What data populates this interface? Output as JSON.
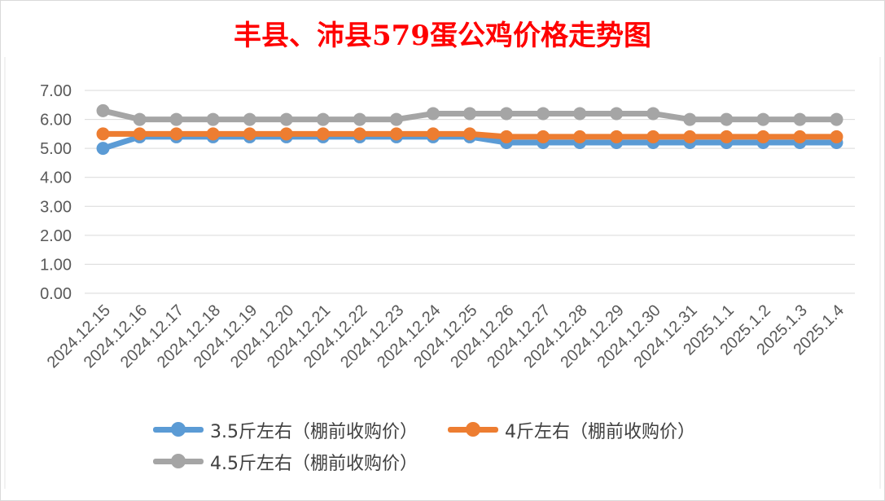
{
  "chart_data": {
    "type": "line",
    "title": "丰县、沛县579蛋公鸡价格走势图",
    "categories": [
      "2024.12.15",
      "2024.12.16",
      "2024.12.17",
      "2024.12.18",
      "2024.12.19",
      "2024.12.20",
      "2024.12.21",
      "2024.12.22",
      "2024.12.23",
      "2024.12.24",
      "2024.12.25",
      "2024.12.26",
      "2024.12.27",
      "2024.12.28",
      "2024.12.29",
      "2024.12.30",
      "2024.12.31",
      "2025.1.1",
      "2025.1.2",
      "2025.1.3",
      "2025.1.4"
    ],
    "y_ticks": [
      "0.00",
      "1.00",
      "2.00",
      "3.00",
      "4.00",
      "5.00",
      "6.00",
      "7.00"
    ],
    "ylim": [
      0,
      7
    ],
    "grid": true,
    "legend_position": "bottom",
    "series": [
      {
        "name": "3.5斤左右（棚前收购价）",
        "color": "#5b9bd5",
        "values": [
          5.0,
          5.4,
          5.4,
          5.4,
          5.4,
          5.4,
          5.4,
          5.4,
          5.4,
          5.4,
          5.4,
          5.2,
          5.2,
          5.2,
          5.2,
          5.2,
          5.2,
          5.2,
          5.2,
          5.2,
          5.2
        ]
      },
      {
        "name": "4斤左右（棚前收购价）",
        "color": "#ed7d31",
        "values": [
          5.5,
          5.5,
          5.5,
          5.5,
          5.5,
          5.5,
          5.5,
          5.5,
          5.5,
          5.5,
          5.5,
          5.4,
          5.4,
          5.4,
          5.4,
          5.4,
          5.4,
          5.4,
          5.4,
          5.4,
          5.4
        ]
      },
      {
        "name": "4.5斤左右（棚前收购价）",
        "color": "#a5a5a5",
        "values": [
          6.3,
          6.0,
          6.0,
          6.0,
          6.0,
          6.0,
          6.0,
          6.0,
          6.0,
          6.2,
          6.2,
          6.2,
          6.2,
          6.2,
          6.2,
          6.2,
          6.0,
          6.0,
          6.0,
          6.0,
          6.0
        ]
      }
    ]
  }
}
